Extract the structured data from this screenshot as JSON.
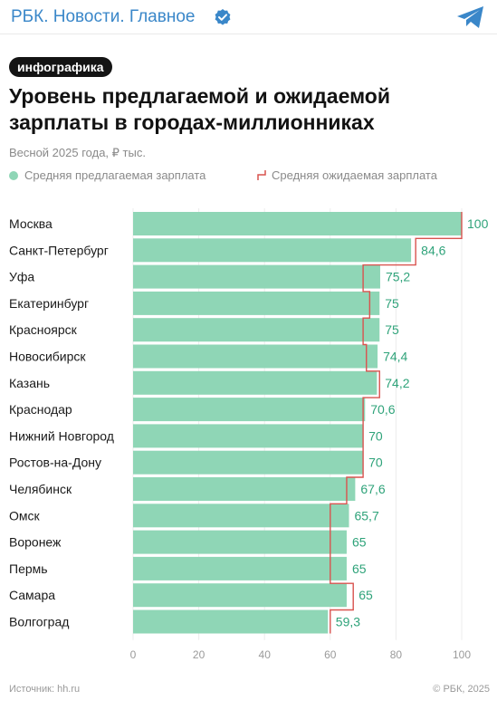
{
  "header": {
    "channel_name": "РБК. Новости. Главное"
  },
  "badge": "инфографика",
  "title": "Уровень предлагаемой и ожидаемой зарплаты в городах-миллионниках",
  "subtitle": "Весной 2025 года, ₽ тыс.",
  "legend": {
    "offered": "Средняя предлагаемая зарплата",
    "expected": "Средняя ожидаемая зарплата"
  },
  "footer": {
    "source": "Источник: hh.ru",
    "copyright": "© РБК, 2025"
  },
  "colors": {
    "bar": "#8fd6b6",
    "value_text": "#2fa37a",
    "expected_line": "#d9534f",
    "link": "#3a87c9"
  },
  "icons": {
    "verified": "verified-check-icon",
    "telegram": "telegram-plane-icon"
  },
  "chart_data": {
    "type": "bar",
    "orientation": "horizontal",
    "categories": [
      "Москва",
      "Санкт-Петербург",
      "Уфа",
      "Екатеринбург",
      "Красноярск",
      "Новосибирск",
      "Казань",
      "Краснодар",
      "Нижний Новгород",
      "Ростов-на-Дону",
      "Челябинск",
      "Омск",
      "Воронеж",
      "Пермь",
      "Самара",
      "Волгоград"
    ],
    "series": [
      {
        "name": "Средняя предлагаемая зарплата",
        "values": [
          100,
          84.6,
          75.2,
          75,
          75,
          74.4,
          74.2,
          70.6,
          70,
          70,
          67.6,
          65.7,
          65,
          65,
          65,
          59.3
        ]
      },
      {
        "name": "Средняя ожидаемая зарплата",
        "values": [
          100,
          86,
          70,
          72,
          70,
          71,
          75,
          70,
          70,
          70,
          65,
          60,
          60,
          60,
          67,
          60
        ]
      }
    ],
    "value_labels": [
      "100",
      "84,6",
      "75,2",
      "75",
      "75",
      "74,4",
      "74,2",
      "70,6",
      "70",
      "70",
      "67,6",
      "65,7",
      "65",
      "65",
      "65",
      "59,3"
    ],
    "xticks": [
      0,
      20,
      40,
      60,
      80,
      100
    ],
    "xlim": [
      0,
      100
    ],
    "grid": true,
    "legend_position": "top-left"
  }
}
